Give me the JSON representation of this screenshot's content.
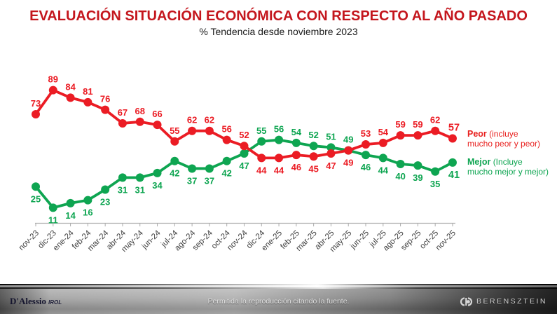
{
  "title": "EVALUACIÓN SITUACIÓN ECONÓMICA CON RESPECTO AL AÑO PASADO",
  "subtitle": "% Tendencia desde noviembre 2023",
  "chart_data": {
    "type": "line",
    "categories": [
      "nov-23",
      "dic-23",
      "ene-24",
      "feb-24",
      "mar-24",
      "abr-24",
      "may-24",
      "jun-24",
      "jul-24",
      "ago-24",
      "sep-24",
      "oct-24",
      "nov-24",
      "dic-24",
      "ene-25",
      "feb-25",
      "mar-25",
      "abr-25",
      "may-25",
      "jun-25",
      "jul-25",
      "ago-25",
      "sep-25",
      "oct-25",
      "nov-25"
    ],
    "series": [
      {
        "name": "Peor",
        "color": "#EB1C24",
        "values": [
          73,
          89,
          84,
          81,
          76,
          67,
          68,
          66,
          55,
          62,
          62,
          56,
          52,
          44,
          44,
          46,
          45,
          47,
          49,
          53,
          54,
          59,
          59,
          62,
          57
        ]
      },
      {
        "name": "Mejor",
        "color": "#0EA551",
        "values": [
          25,
          11,
          14,
          16,
          23,
          31,
          31,
          34,
          42,
          37,
          37,
          42,
          47,
          55,
          56,
          54,
          52,
          51,
          49,
          46,
          44,
          40,
          39,
          35,
          41
        ]
      }
    ],
    "title": "EVALUACIÓN SITUACIÓN ECONÓMICA CON RESPECTO AL AÑO PASADO",
    "subtitle": "% Tendencia desde noviembre 2023",
    "xlabel": "",
    "ylabel": "",
    "ylim": [
      0,
      100
    ],
    "grid": false,
    "legend_position": "right",
    "last_value_bold": true,
    "data_labels": true
  },
  "legend": {
    "peor": {
      "bold": "Peor",
      "rest": "(incluye",
      "line2": "mucho peor y peor)"
    },
    "mejor": {
      "bold": "Mejor",
      "rest": "(Incluye",
      "line2": "mucho mejor y mejor)"
    }
  },
  "footer": {
    "center_text": "Permitida la reproducción citando la fuente.",
    "left_logo_main": "D'Alessio",
    "left_logo_sub": "IROL",
    "right_logo_text": "BERENSZTEIN"
  },
  "colors": {
    "title_red": "#C4161D",
    "series_peor": "#EB1C24",
    "series_mejor": "#0EA551",
    "axis_line": "#ABABAB",
    "axis_label": "#3F3F3F"
  }
}
